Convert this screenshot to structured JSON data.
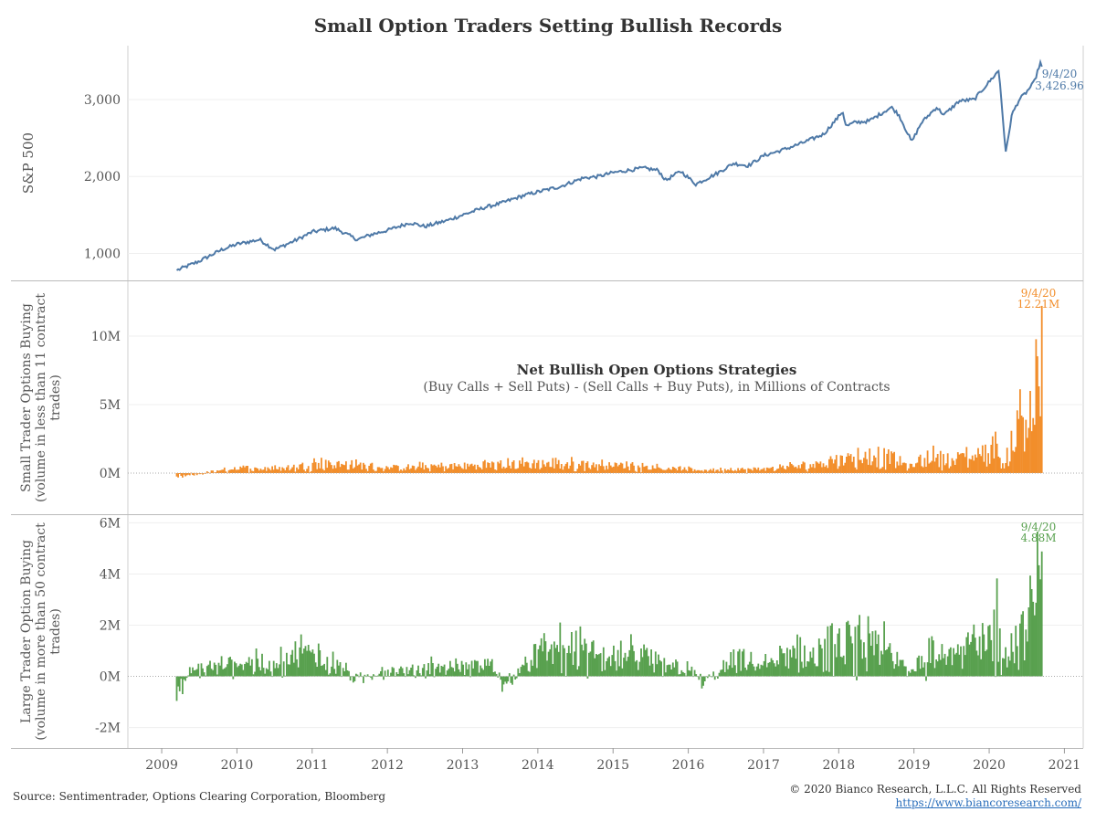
{
  "title": "Small Option Traders Setting Bullish Records",
  "footer": {
    "source": "Source: Sentimentrader, Options Clearing Corporation, Bloomberg",
    "copyright": "© 2020 Bianco Research, L.L.C. All Rights Reserved",
    "url": "https://www.biancoresearch.com/"
  },
  "colors": {
    "spx": "#4e79a7",
    "small": "#f28e2b",
    "large": "#59a14f"
  },
  "chart_data": [
    {
      "type": "line",
      "name": "S&P 500",
      "ylabel": "S&P 500",
      "x_years": [
        2009.2,
        2009.5,
        2009.8,
        2010.0,
        2010.3,
        2010.5,
        2010.8,
        2011.0,
        2011.3,
        2011.6,
        2011.8,
        2012.0,
        2012.3,
        2012.5,
        2012.8,
        2013.0,
        2013.3,
        2013.5,
        2013.8,
        2014.0,
        2014.3,
        2014.6,
        2014.8,
        2015.0,
        2015.4,
        2015.6,
        2015.7,
        2015.9,
        2016.1,
        2016.4,
        2016.6,
        2016.8,
        2017.0,
        2017.3,
        2017.5,
        2017.8,
        2018.0,
        2018.05,
        2018.1,
        2018.2,
        2018.4,
        2018.7,
        2018.8,
        2018.97,
        2019.1,
        2019.3,
        2019.4,
        2019.6,
        2019.8,
        2020.0,
        2020.13,
        2020.22,
        2020.3,
        2020.4,
        2020.5,
        2020.6,
        2020.68,
        2020.7
      ],
      "y": [
        780,
        900,
        1050,
        1120,
        1180,
        1050,
        1180,
        1280,
        1330,
        1180,
        1250,
        1300,
        1400,
        1350,
        1430,
        1500,
        1600,
        1650,
        1750,
        1800,
        1870,
        1980,
        2000,
        2050,
        2110,
        2080,
        1950,
        2070,
        1900,
        2050,
        2170,
        2140,
        2270,
        2360,
        2430,
        2550,
        2780,
        2850,
        2650,
        2700,
        2720,
        2900,
        2800,
        2450,
        2700,
        2900,
        2800,
        2980,
        3000,
        3230,
        3380,
        2300,
        2800,
        3000,
        3100,
        3230,
        3480,
        3426.96
      ],
      "yticks": [
        1000,
        2000,
        3000
      ],
      "ytick_labels": [
        "1,000",
        "2,000",
        "3,000"
      ],
      "ylim": [
        650,
        3700
      ],
      "annotation": {
        "date": "9/4/20",
        "value": "3,426.96"
      }
    },
    {
      "type": "bar",
      "name": "Small Trader Options Buying",
      "ylabel_lines": [
        "Small Trader Options Buying",
        "(volume in less than 11 contract",
        "trades)"
      ],
      "subtitle_bold": "Net Bullish Open Options Strategies",
      "subtitle": "(Buy Calls + Sell Puts) - (Sell Calls + Buy Puts), in Millions of Contracts",
      "unit": "M contracts",
      "anchors_x": [
        2009.2,
        2010.0,
        2010.8,
        2011.0,
        2011.6,
        2012.2,
        2012.5,
        2013.0,
        2013.5,
        2014.0,
        2014.5,
        2015.0,
        2015.5,
        2016.0,
        2016.5,
        2016.9,
        2017.2,
        2017.5,
        2017.7,
        2018.0,
        2018.3,
        2018.7,
        2018.95,
        2019.1,
        2019.3,
        2019.5,
        2019.8,
        2020.0,
        2020.1,
        2020.2,
        2020.3,
        2020.4,
        2020.5,
        2020.6,
        2020.68,
        2020.7
      ],
      "anchors_y": [
        -0.3,
        0.4,
        0.5,
        0.9,
        0.7,
        0.4,
        0.6,
        0.6,
        0.8,
        0.8,
        0.8,
        0.7,
        0.6,
        0.3,
        0.3,
        0.3,
        0.5,
        0.6,
        0.8,
        1.3,
        1.5,
        1.3,
        0.5,
        1.2,
        1.5,
        1.2,
        1.5,
        2.0,
        2.5,
        0.3,
        3.0,
        5.0,
        6.0,
        7.0,
        9.0,
        12.21
      ],
      "yticks": [
        0,
        5,
        10
      ],
      "ytick_labels": [
        "0M",
        "5M",
        "10M"
      ],
      "ylim": [
        -3,
        14
      ],
      "annotation": {
        "date": "9/4/20",
        "value": "12.21M"
      }
    },
    {
      "type": "bar",
      "name": "Large Trader Option Buying",
      "ylabel_lines": [
        "Large Trader Option Buying",
        "(volume in more than  50 contract",
        "trades)"
      ],
      "unit": "M contracts",
      "anchors_x": [
        2009.2,
        2009.4,
        2009.8,
        2010.2,
        2010.4,
        2010.7,
        2011.0,
        2011.3,
        2011.6,
        2011.9,
        2012.3,
        2012.6,
        2013.0,
        2013.4,
        2013.55,
        2013.9,
        2014.2,
        2014.6,
        2015.0,
        2015.2,
        2015.6,
        2016.0,
        2016.2,
        2016.6,
        2017.0,
        2017.4,
        2017.8,
        2018.0,
        2018.2,
        2018.6,
        2018.95,
        2019.2,
        2019.4,
        2019.7,
        2020.0,
        2020.1,
        2020.2,
        2020.3,
        2020.5,
        2020.6,
        2020.68,
        2020.7
      ],
      "anchors_y": [
        -0.8,
        0.3,
        0.5,
        0.8,
        0.4,
        0.9,
        1.2,
        0.8,
        -0.2,
        0.3,
        0.2,
        0.5,
        0.4,
        0.6,
        -0.5,
        0.8,
        1.4,
        1.2,
        0.8,
        1.0,
        0.6,
        0.4,
        -0.3,
        0.7,
        0.6,
        1.0,
        1.3,
        1.2,
        1.6,
        1.3,
        0.2,
        1.3,
        1.5,
        1.3,
        1.8,
        2.6,
        0.8,
        1.6,
        2.2,
        3.2,
        4.3,
        4.88
      ],
      "yticks": [
        -2,
        0,
        2,
        4,
        6
      ],
      "ytick_labels": [
        "-2M",
        "0M",
        "2M",
        "4M",
        "6M"
      ],
      "ylim": [
        -2.8,
        6.3
      ],
      "annotation": {
        "date": "9/4/20",
        "value": "4.88M"
      }
    }
  ],
  "x_axis": {
    "ticks": [
      2009,
      2010,
      2011,
      2012,
      2013,
      2014,
      2015,
      2016,
      2017,
      2018,
      2019,
      2020,
      2021
    ],
    "labels": [
      "2009",
      "2010",
      "2011",
      "2012",
      "2013",
      "2014",
      "2015",
      "2016",
      "2017",
      "2018",
      "2019",
      "2020",
      "2021"
    ],
    "range": [
      2008.55,
      2021.25
    ]
  }
}
